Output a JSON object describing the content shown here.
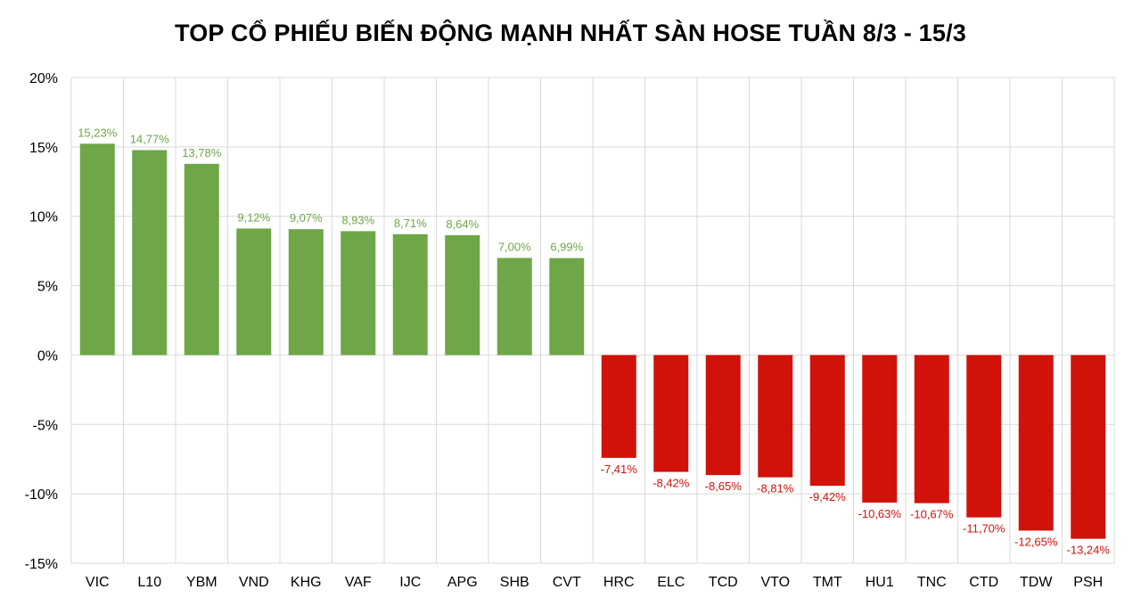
{
  "chart_data": {
    "type": "bar",
    "title": "TOP CỔ PHIẾU BIẾN ĐỘNG MẠNH NHẤT SÀN HOSE TUẦN 8/3 - 15/3",
    "xlabel": "",
    "ylabel": "",
    "ylim": [
      -15,
      20
    ],
    "yticks": [
      20,
      15,
      10,
      5,
      0,
      -5,
      -10,
      -15
    ],
    "ytick_labels": [
      "20%",
      "15%",
      "10%",
      "5%",
      "0%",
      "-5%",
      "-10%",
      "-15%"
    ],
    "grid": true,
    "legend": "none",
    "categories": [
      "VIC",
      "L10",
      "YBM",
      "VND",
      "KHG",
      "VAF",
      "IJC",
      "APG",
      "SHB",
      "CVT",
      "HRC",
      "ELC",
      "TCD",
      "VTO",
      "TMT",
      "HU1",
      "TNC",
      "CTD",
      "TDW",
      "PSH"
    ],
    "values": [
      15.23,
      14.77,
      13.78,
      9.12,
      9.07,
      8.93,
      8.71,
      8.64,
      7.0,
      6.99,
      -7.41,
      -8.42,
      -8.65,
      -8.81,
      -9.42,
      -10.63,
      -10.67,
      -11.7,
      -12.65,
      -13.24
    ],
    "data_labels": [
      "15,23%",
      "14,77%",
      "13,78%",
      "9,12%",
      "9,07%",
      "8,93%",
      "8,71%",
      "8,64%",
      "7,00%",
      "6,99%",
      "-7,41%",
      "-8,42%",
      "-8,65%",
      "-8,81%",
      "-9,42%",
      "-10,63%",
      "-10,67%",
      "-11,70%",
      "-12,65%",
      "-13,24%"
    ],
    "colors": {
      "positive": "#6ea648",
      "negative": "#d0120b",
      "grid": "#d9d9d9"
    }
  }
}
